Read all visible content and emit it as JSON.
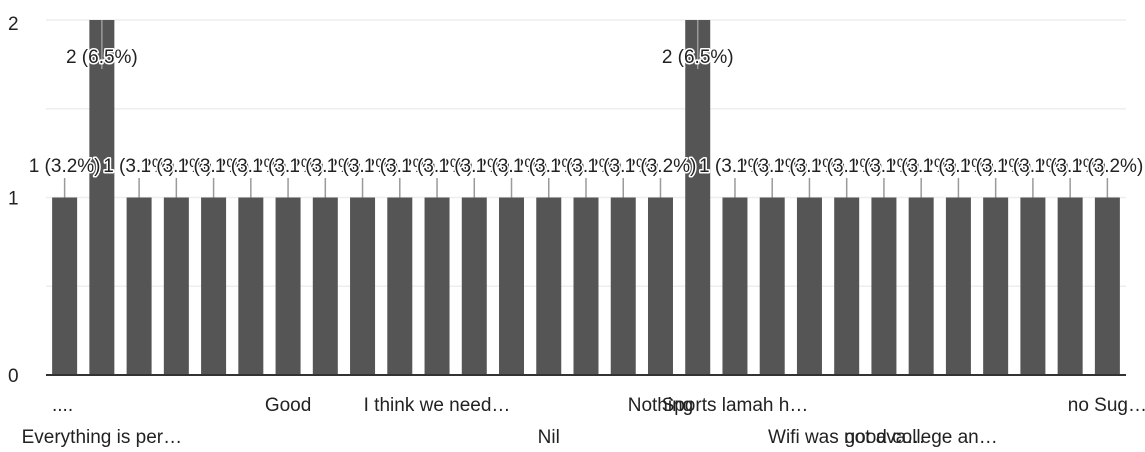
{
  "chart_data": {
    "type": "bar",
    "ylim": [
      0,
      2
    ],
    "yticks": [
      0,
      1,
      2
    ],
    "grid": true,
    "legend": "none",
    "categories": [
      "....",
      "Everything is per…",
      "",
      "",
      "",
      "",
      "Good",
      "",
      "",
      "",
      "I think we need…",
      "",
      "",
      "Nil",
      "",
      "",
      "Nothing",
      "",
      "Sports lamah h…",
      "",
      "",
      "Wifi was not ava…",
      "",
      "good college an…",
      "",
      "",
      "",
      "",
      "no Sug…"
    ],
    "values": [
      1,
      2,
      1,
      1,
      1,
      1,
      1,
      1,
      1,
      1,
      1,
      1,
      1,
      1,
      1,
      1,
      1,
      2,
      1,
      1,
      1,
      1,
      1,
      1,
      1,
      1,
      1,
      1,
      1
    ],
    "data_labels": [
      "1 (3.2%)",
      "2 (6.5%)",
      "1 (3.2%)",
      "1 (3.2%)",
      "1 (3.2%)",
      "1 (3.2%)",
      "1 (3.2%)",
      "1 (3.2%)",
      "1 (3.2%)",
      "1 (3.2%)",
      "1 (3.2%)",
      "1 (3.2%)",
      "1 (3.2%)",
      "1 (3.2%)",
      "1 (3.2%)",
      "1 (3.2%)",
      "1 (3.2%)",
      "2 (6.5%)",
      "1 (3.2%)",
      "1 (3.2%)",
      "1 (3.2%)",
      "1 (3.2%)",
      "1 (3.2%)",
      "1 (3.2%)",
      "1 (3.2%)",
      "1 (3.2%)",
      "1 (3.2%)",
      "1 (3.2%)",
      "1 (3.2%)"
    ],
    "bar_color": "#555555",
    "grid_color": "#eeeeee",
    "axis_color": "#333333"
  }
}
